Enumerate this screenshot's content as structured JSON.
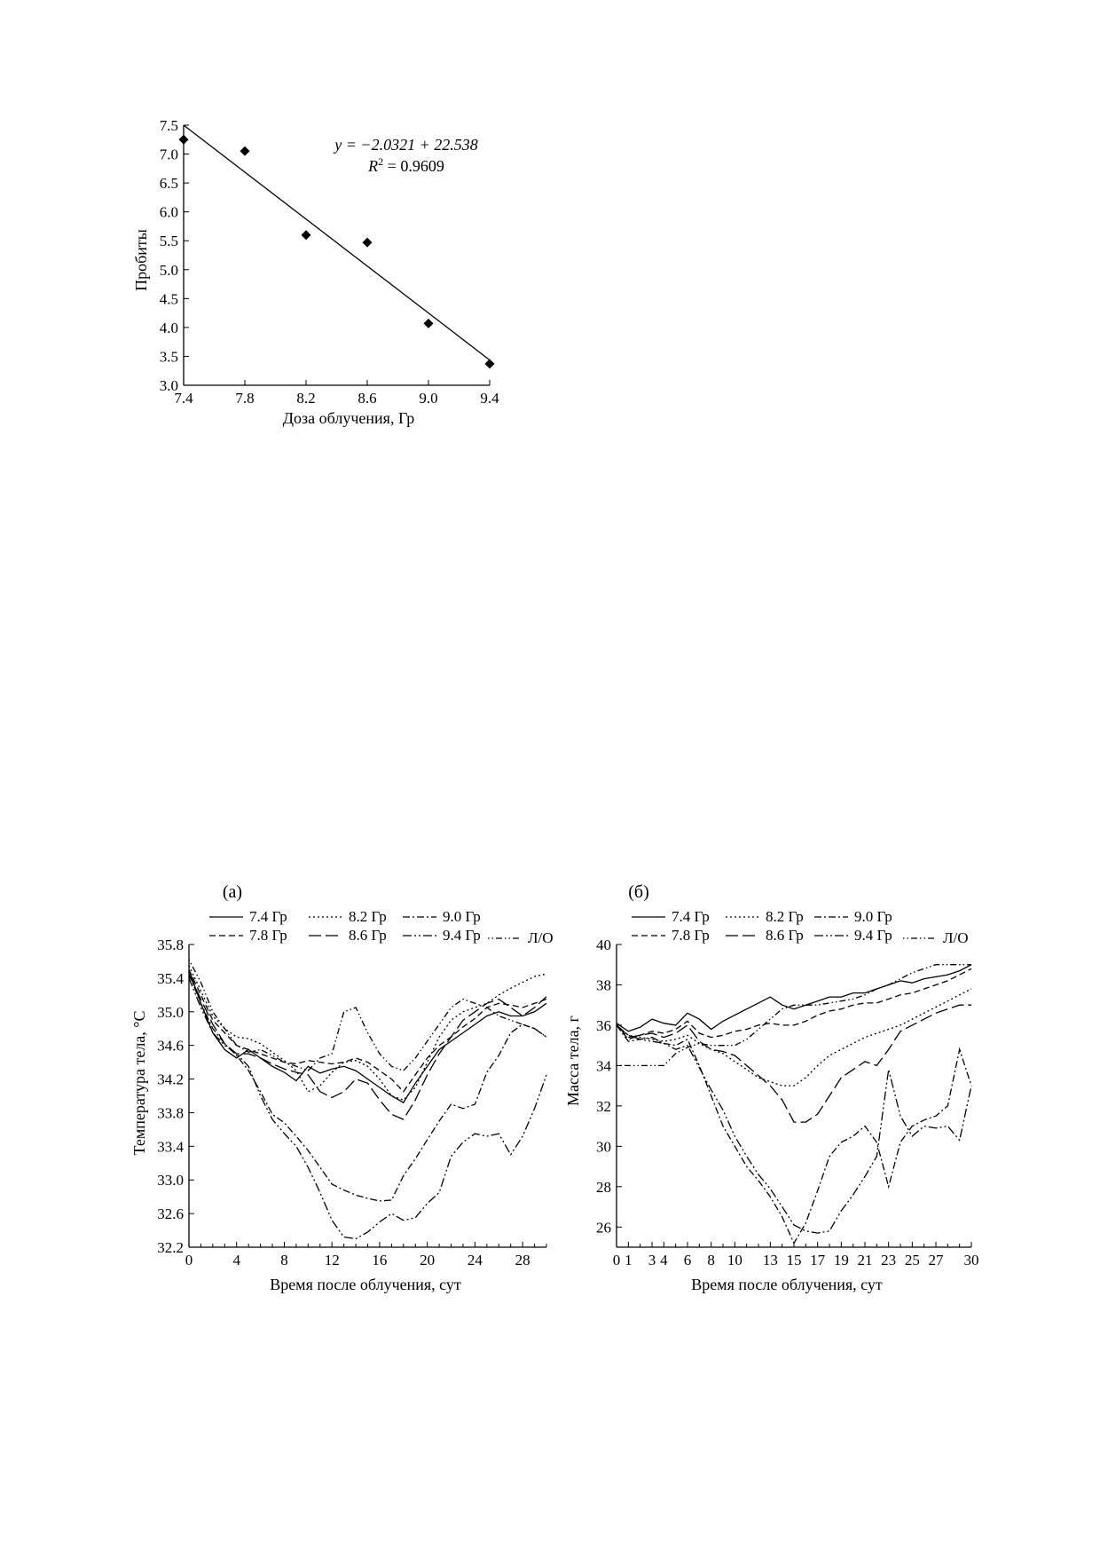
{
  "colors": {
    "ink": "#000000",
    "background": "#ffffff"
  },
  "chart_data": [
    {
      "type": "scatter",
      "title": "",
      "xlabel": "Доза облучения, Гр",
      "ylabel": "Пробиты",
      "xlim": [
        7.4,
        9.4
      ],
      "ylim": [
        3.0,
        7.5
      ],
      "xticks": [
        "7.4",
        "7.8",
        "8.2",
        "8.6",
        "9.0",
        "9.4"
      ],
      "yticks": [
        "3.0",
        "3.5",
        "4.0",
        "4.5",
        "5.0",
        "5.5",
        "6.0",
        "6.5",
        "7.0",
        "7.5"
      ],
      "marker": "diamond",
      "points": {
        "x": [
          7.4,
          7.8,
          8.2,
          8.6,
          9.0,
          9.4
        ],
        "y": [
          7.25,
          7.05,
          5.6,
          5.47,
          4.07,
          3.37
        ]
      },
      "trendline": {
        "slope": -2.0321,
        "intercept": 22.538
      },
      "equation": "y = −2.0321 + 22.538",
      "r_squared": "R2 = 0.9609",
      "grid": false
    },
    {
      "type": "line",
      "panel_label": "(а)",
      "xlabel": "Время после облучения, сут",
      "ylabel": "Температура тела, °С",
      "xlim": [
        0,
        30
      ],
      "ylim": [
        32.2,
        35.8
      ],
      "xticks": [
        "0",
        "4",
        "8",
        "12",
        "16",
        "20",
        "24",
        "28"
      ],
      "yticks": [
        "32.2",
        "32.6",
        "33.0",
        "33.4",
        "33.8",
        "34.2",
        "34.6",
        "35.0",
        "35.4",
        "35.8"
      ],
      "x": [
        0,
        1,
        2,
        3,
        4,
        5,
        6,
        7,
        8,
        9,
        10,
        11,
        12,
        13,
        14,
        15,
        16,
        17,
        18,
        19,
        20,
        21,
        22,
        23,
        24,
        25,
        26,
        27,
        28,
        29,
        30
      ],
      "series": [
        {
          "name": "7.4 Гр",
          "dash": "",
          "values": [
            35.5,
            35.1,
            34.75,
            34.55,
            34.45,
            34.55,
            34.45,
            34.35,
            34.28,
            34.18,
            34.35,
            34.27,
            34.32,
            34.35,
            34.3,
            34.2,
            34.1,
            34.0,
            33.92,
            34.15,
            34.35,
            34.55,
            34.65,
            34.75,
            34.85,
            34.95,
            35.0,
            34.95,
            34.95,
            35.0,
            35.1
          ]
        },
        {
          "name": "7.8 Гр",
          "dash": "7,4",
          "values": [
            35.5,
            35.2,
            34.9,
            34.75,
            34.6,
            34.55,
            34.5,
            34.45,
            34.4,
            34.38,
            34.42,
            34.4,
            34.38,
            34.4,
            34.45,
            34.4,
            34.3,
            34.2,
            34.05,
            34.25,
            34.45,
            34.6,
            34.7,
            34.82,
            34.92,
            35.05,
            35.1,
            35.08,
            35.05,
            35.1,
            35.15
          ]
        },
        {
          "name": "8.2 Гр",
          "dash": "2,3",
          "values": [
            35.55,
            35.25,
            34.95,
            34.8,
            34.7,
            34.68,
            34.62,
            34.52,
            34.42,
            34.3,
            34.05,
            34.12,
            34.28,
            34.4,
            34.42,
            34.35,
            34.2,
            34.0,
            33.95,
            34.1,
            34.4,
            34.7,
            34.9,
            35.0,
            35.05,
            35.1,
            35.2,
            35.28,
            35.35,
            35.42,
            35.45
          ]
        },
        {
          "name": "8.6 Гр",
          "dash": "14,5",
          "values": [
            35.45,
            35.15,
            34.85,
            34.62,
            34.5,
            34.5,
            34.45,
            34.38,
            34.32,
            34.28,
            34.25,
            34.05,
            33.98,
            34.05,
            34.2,
            34.15,
            33.95,
            33.78,
            33.72,
            33.95,
            34.25,
            34.5,
            34.7,
            34.9,
            35.0,
            35.1,
            35.15,
            35.05,
            34.95,
            35.05,
            35.18
          ]
        },
        {
          "name": "9.0 Гр",
          "dash": "8,3,2,3",
          "values": [
            35.45,
            35.1,
            34.8,
            34.62,
            34.48,
            34.3,
            34.05,
            33.78,
            33.68,
            33.52,
            33.35,
            33.15,
            32.95,
            32.88,
            32.82,
            32.78,
            32.75,
            32.76,
            33.05,
            33.25,
            33.48,
            33.7,
            33.9,
            33.85,
            33.9,
            34.28,
            34.48,
            34.75,
            34.85,
            34.8,
            34.7
          ]
        },
        {
          "name": "9.4 Гр",
          "dash": "10,3,2,3,2,3",
          "values": [
            35.4,
            35.05,
            34.75,
            34.6,
            34.5,
            34.35,
            34.0,
            33.72,
            33.55,
            33.4,
            33.15,
            32.85,
            32.52,
            32.32,
            32.3,
            32.38,
            32.5,
            32.6,
            32.52,
            32.55,
            32.72,
            32.85,
            33.28,
            33.45,
            33.55,
            33.52,
            33.55,
            33.3,
            33.52,
            33.85,
            34.25
          ]
        },
        {
          "name": "Л/О",
          "dash": "1.5,3,1.5,3,7,3",
          "values": [
            35.62,
            35.35,
            35.0,
            34.8,
            34.6,
            34.52,
            34.55,
            34.48,
            34.4,
            34.35,
            34.3,
            34.45,
            34.5,
            35.0,
            35.05,
            34.75,
            34.5,
            34.35,
            34.3,
            34.45,
            34.65,
            34.85,
            35.05,
            35.15,
            35.1,
            35.05,
            34.95,
            34.9,
            34.85,
            34.8,
            34.7
          ]
        }
      ]
    },
    {
      "type": "line",
      "panel_label": "(б)",
      "xlabel": "Время после облучения, сут",
      "ylabel": "Масса тела, г",
      "xlim": [
        0,
        30
      ],
      "ylim": [
        25,
        40
      ],
      "xticks": [
        "0",
        "1",
        "3",
        "4",
        "6",
        "8",
        "10",
        "13",
        "15",
        "17",
        "19",
        "21",
        "23",
        "25",
        "27",
        "30"
      ],
      "yticks": [
        "26",
        "28",
        "30",
        "32",
        "34",
        "36",
        "38",
        "40"
      ],
      "x": [
        0,
        1,
        2,
        3,
        4,
        5,
        6,
        7,
        8,
        9,
        10,
        11,
        12,
        13,
        14,
        15,
        16,
        17,
        18,
        19,
        20,
        21,
        22,
        23,
        24,
        25,
        26,
        27,
        28,
        29,
        30
      ],
      "series": [
        {
          "name": "7.4 Гр",
          "dash": "",
          "values": [
            36.1,
            35.7,
            35.9,
            36.3,
            36.1,
            36.0,
            36.6,
            36.3,
            35.8,
            36.2,
            36.5,
            36.8,
            37.1,
            37.4,
            37.0,
            36.8,
            37.0,
            37.2,
            37.4,
            37.4,
            37.6,
            37.6,
            37.8,
            38.0,
            38.2,
            38.1,
            38.3,
            38.4,
            38.5,
            38.7,
            39.0
          ]
        },
        {
          "name": "7.8 Гр",
          "dash": "7,4",
          "values": [
            36.0,
            35.3,
            35.5,
            35.7,
            35.6,
            35.8,
            36.2,
            35.6,
            35.4,
            35.5,
            35.7,
            35.8,
            36.0,
            36.1,
            36.0,
            36.0,
            36.2,
            36.5,
            36.7,
            36.8,
            37.0,
            37.1,
            37.1,
            37.3,
            37.5,
            37.6,
            37.8,
            38.0,
            38.2,
            38.5,
            38.8
          ]
        },
        {
          "name": "8.2 Гр",
          "dash": "2,3",
          "values": [
            36.0,
            35.5,
            35.4,
            35.3,
            35.2,
            35.3,
            35.5,
            35.1,
            34.8,
            34.6,
            34.2,
            33.8,
            33.4,
            33.2,
            33.0,
            33.0,
            33.4,
            34.0,
            34.5,
            34.8,
            35.1,
            35.4,
            35.6,
            35.8,
            36.0,
            36.3,
            36.6,
            36.9,
            37.2,
            37.5,
            37.8
          ]
        },
        {
          "name": "8.6 Гр",
          "dash": "14,5",
          "values": [
            36.0,
            35.4,
            35.5,
            35.6,
            35.4,
            35.6,
            36.0,
            35.2,
            34.8,
            34.7,
            34.5,
            34.0,
            33.5,
            33.0,
            32.3,
            31.2,
            31.2,
            31.6,
            32.5,
            33.4,
            33.8,
            34.2,
            34.0,
            34.8,
            35.7,
            36.0,
            36.3,
            36.6,
            36.8,
            37.0,
            37.0
          ]
        },
        {
          "name": "9.0 Гр",
          "dash": "8,3,2,3",
          "values": [
            36.0,
            35.2,
            35.3,
            35.4,
            35.1,
            35.0,
            35.3,
            34.0,
            32.5,
            31.0,
            30.0,
            29.0,
            28.3,
            27.5,
            26.5,
            25.2,
            26.2,
            27.8,
            29.5,
            30.2,
            30.5,
            31.0,
            30.2,
            28.0,
            30.2,
            31.0,
            31.3,
            31.5,
            32.0,
            34.8,
            33.0
          ]
        },
        {
          "name": "9.4 Гр",
          "dash": "10,3,2,3,2,3",
          "values": [
            36.0,
            35.5,
            35.3,
            35.2,
            35.1,
            34.8,
            35.0,
            33.9,
            32.8,
            31.8,
            30.5,
            29.5,
            28.6,
            27.9,
            27.0,
            26.1,
            25.8,
            25.7,
            25.8,
            26.8,
            27.6,
            28.5,
            29.5,
            33.8,
            31.5,
            30.5,
            31.0,
            30.9,
            31.0,
            30.3,
            33.0
          ]
        },
        {
          "name": "Л/О",
          "dash": "1.5,3,1.5,3,7,3",
          "values": [
            34.0,
            34.0,
            34.0,
            34.0,
            34.0,
            34.6,
            34.9,
            35.1,
            35.0,
            35.0,
            35.0,
            35.3,
            35.8,
            36.3,
            36.8,
            37.0,
            37.0,
            37.0,
            37.1,
            37.2,
            37.3,
            37.5,
            37.8,
            38.0,
            38.3,
            38.6,
            38.8,
            39.0,
            39.0,
            39.0,
            39.0
          ]
        }
      ]
    }
  ]
}
